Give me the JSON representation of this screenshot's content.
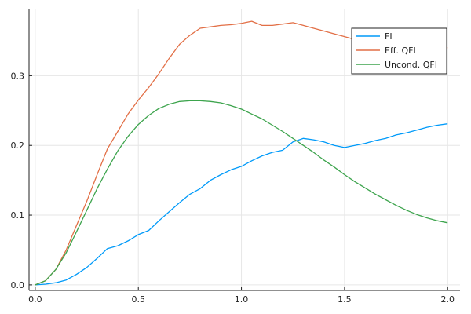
{
  "chart_data": {
    "type": "line",
    "title": "",
    "xlabel": "",
    "ylabel": "",
    "xlim": [
      -0.03,
      2.06
    ],
    "ylim": [
      -0.008,
      0.395
    ],
    "xticks": [
      0.0,
      0.5,
      1.0,
      1.5,
      2.0
    ],
    "xtick_labels": [
      "0.0",
      "0.5",
      "1.0",
      "1.5",
      "2.0"
    ],
    "yticks": [
      0.0,
      0.1,
      0.2,
      0.3
    ],
    "ytick_labels": [
      "0.0",
      "0.1",
      "0.2",
      "0.3"
    ],
    "grid": true,
    "legend_position": "top-right",
    "series": [
      {
        "name": "FI",
        "color": "#009af9",
        "x": [
          0.0,
          0.05,
          0.1,
          0.15,
          0.2,
          0.25,
          0.3,
          0.35,
          0.4,
          0.45,
          0.5,
          0.55,
          0.6,
          0.65,
          0.7,
          0.75,
          0.8,
          0.85,
          0.9,
          0.95,
          1.0,
          1.05,
          1.1,
          1.15,
          1.2,
          1.25,
          1.3,
          1.35,
          1.4,
          1.45,
          1.5,
          1.55,
          1.6,
          1.65,
          1.7,
          1.75,
          1.8,
          1.85,
          1.9,
          1.95,
          2.0
        ],
        "y": [
          0.0,
          0.001,
          0.003,
          0.007,
          0.015,
          0.025,
          0.038,
          0.052,
          0.056,
          0.063,
          0.072,
          0.078,
          0.092,
          0.105,
          0.118,
          0.13,
          0.138,
          0.15,
          0.158,
          0.165,
          0.17,
          0.178,
          0.185,
          0.19,
          0.193,
          0.205,
          0.21,
          0.208,
          0.205,
          0.2,
          0.197,
          0.2,
          0.203,
          0.207,
          0.21,
          0.215,
          0.218,
          0.222,
          0.226,
          0.229,
          0.231
        ]
      },
      {
        "name": "Eff. QFI",
        "color": "#e26f46",
        "x": [
          0.0,
          0.05,
          0.1,
          0.15,
          0.2,
          0.25,
          0.3,
          0.35,
          0.4,
          0.45,
          0.5,
          0.55,
          0.6,
          0.65,
          0.7,
          0.75,
          0.8,
          0.85,
          0.9,
          0.95,
          1.0,
          1.05,
          1.1,
          1.15,
          1.2,
          1.25,
          1.3,
          1.35,
          1.4,
          1.45,
          1.5,
          1.55,
          1.6,
          1.65,
          1.7,
          1.75,
          1.8,
          1.85,
          1.9,
          1.95,
          2.0
        ],
        "y": [
          0.0,
          0.006,
          0.022,
          0.05,
          0.085,
          0.12,
          0.158,
          0.195,
          0.22,
          0.245,
          0.265,
          0.283,
          0.303,
          0.325,
          0.345,
          0.358,
          0.368,
          0.37,
          0.372,
          0.373,
          0.375,
          0.378,
          0.372,
          0.372,
          0.374,
          0.376,
          0.372,
          0.368,
          0.364,
          0.36,
          0.356,
          0.352,
          0.35,
          0.348,
          0.346,
          0.345,
          0.344,
          0.343,
          0.342,
          0.341,
          0.34
        ]
      },
      {
        "name": "Uncond. QFI",
        "color": "#3da44d",
        "x": [
          0.0,
          0.05,
          0.1,
          0.15,
          0.2,
          0.25,
          0.3,
          0.35,
          0.4,
          0.45,
          0.5,
          0.55,
          0.6,
          0.65,
          0.7,
          0.75,
          0.8,
          0.85,
          0.9,
          0.95,
          1.0,
          1.05,
          1.1,
          1.15,
          1.2,
          1.25,
          1.3,
          1.35,
          1.4,
          1.45,
          1.5,
          1.55,
          1.6,
          1.65,
          1.7,
          1.75,
          1.8,
          1.85,
          1.9,
          1.95,
          2.0
        ],
        "y": [
          0.0,
          0.006,
          0.022,
          0.046,
          0.076,
          0.107,
          0.138,
          0.166,
          0.192,
          0.213,
          0.23,
          0.243,
          0.253,
          0.259,
          0.263,
          0.264,
          0.264,
          0.263,
          0.261,
          0.257,
          0.252,
          0.245,
          0.238,
          0.229,
          0.22,
          0.21,
          0.2,
          0.19,
          0.179,
          0.169,
          0.158,
          0.148,
          0.139,
          0.13,
          0.122,
          0.114,
          0.107,
          0.101,
          0.096,
          0.092,
          0.089
        ]
      }
    ]
  }
}
